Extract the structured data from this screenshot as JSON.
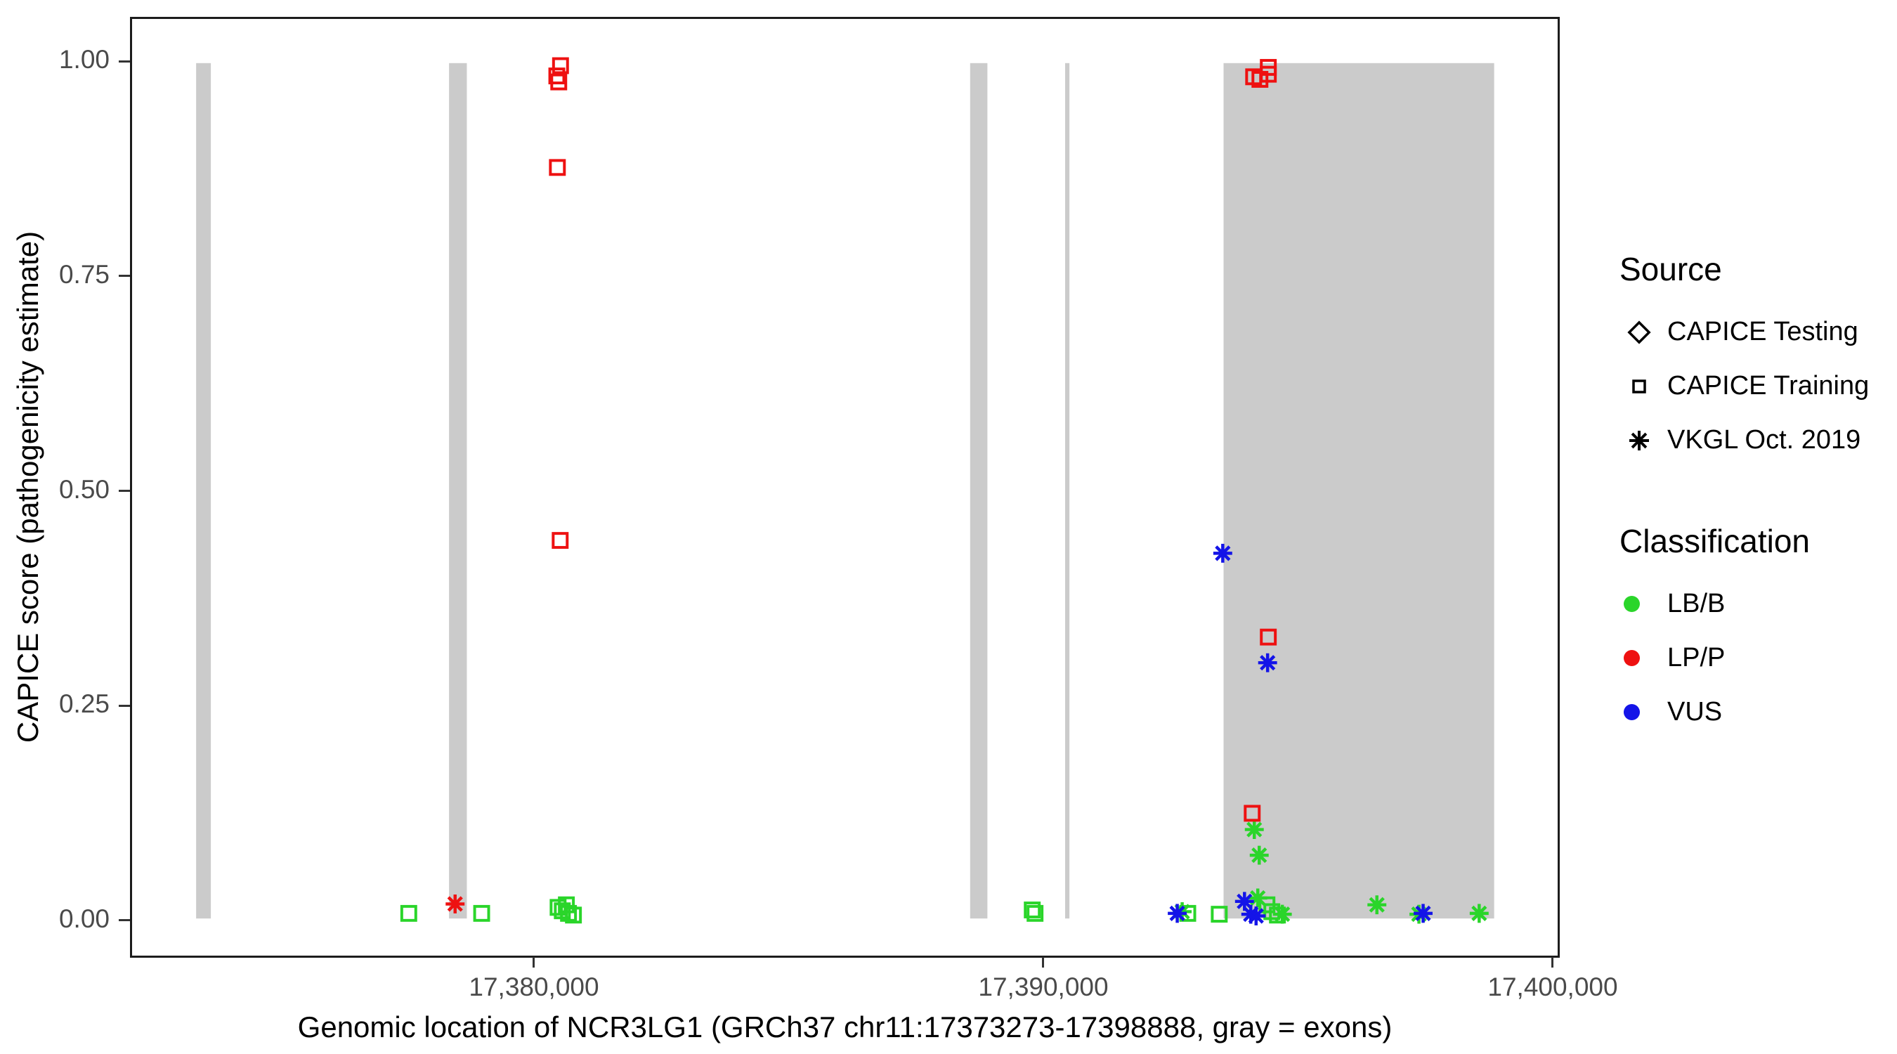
{
  "chart_data": {
    "type": "scatter",
    "title": "",
    "xlabel": "Genomic location of NCR3LG1 (GRCh37 chr11:17373273-17398888, gray = exons)",
    "ylabel": "CAPICE score (pathogenicity estimate)",
    "x_domain": [
      17372069,
      17400138
    ],
    "y_domain": [
      -0.0434,
      1.0516
    ],
    "x_ticks": [
      {
        "value": 17380000,
        "label": "17,380,000"
      },
      {
        "value": 17390000,
        "label": "17,390,000"
      },
      {
        "value": 17400000,
        "label": "17,400,000"
      }
    ],
    "y_ticks": [
      {
        "value": 0.0,
        "label": "0.00"
      },
      {
        "value": 0.25,
        "label": "0.25"
      },
      {
        "value": 0.5,
        "label": "0.50"
      },
      {
        "value": 0.75,
        "label": "0.75"
      },
      {
        "value": 1.0,
        "label": "1.00"
      }
    ],
    "grid": false,
    "exon_note": "gray vertical rectangles mark exons, spanning score 0 to 1",
    "exons": [
      [
        17373330,
        17373620
      ],
      [
        17378310,
        17378660
      ],
      [
        17388570,
        17388910
      ],
      [
        17390440,
        17390525
      ],
      [
        17393560,
        17398888
      ]
    ],
    "colors": {
      "LB/B": "#2AD52A",
      "LP/P": "#EE1111",
      "VUS": "#1414E8",
      "exon": "#CBCBCB"
    },
    "shape_by_source": {
      "CAPICE Testing": "diamond",
      "CAPICE Training": "square",
      "VKGL Oct. 2019": "asterisk"
    },
    "points": [
      {
        "x": 17377517,
        "y": 0.006,
        "source": "CAPICE Training",
        "class": "LB/B"
      },
      {
        "x": 17378952,
        "y": 0.006,
        "source": "CAPICE Training",
        "class": "LB/B"
      },
      {
        "x": 17380457,
        "y": 0.013,
        "source": "CAPICE Training",
        "class": "LB/B"
      },
      {
        "x": 17380540,
        "y": 0.009,
        "source": "CAPICE Training",
        "class": "LB/B"
      },
      {
        "x": 17380620,
        "y": 0.016,
        "source": "CAPICE Training",
        "class": "LB/B"
      },
      {
        "x": 17380662,
        "y": 0.006,
        "source": "CAPICE Training",
        "class": "LB/B"
      },
      {
        "x": 17380759,
        "y": 0.004,
        "source": "CAPICE Training",
        "class": "LB/B"
      },
      {
        "x": 17389793,
        "y": 0.01,
        "source": "CAPICE Training",
        "class": "LB/B"
      },
      {
        "x": 17389848,
        "y": 0.006,
        "source": "CAPICE Training",
        "class": "LB/B"
      },
      {
        "x": 17392855,
        "y": 0.006,
        "source": "CAPICE Training",
        "class": "LB/B"
      },
      {
        "x": 17393475,
        "y": 0.005,
        "source": "CAPICE Training",
        "class": "LB/B"
      },
      {
        "x": 17394414,
        "y": 0.016,
        "source": "CAPICE Training",
        "class": "LB/B"
      },
      {
        "x": 17394510,
        "y": 0.008,
        "source": "CAPICE Training",
        "class": "LB/B"
      },
      {
        "x": 17394621,
        "y": 0.004,
        "source": "CAPICE Training",
        "class": "LB/B"
      },
      {
        "x": 17392745,
        "y": 0.008,
        "source": "VKGL Oct. 2019",
        "class": "LB/B"
      },
      {
        "x": 17394234,
        "y": 0.024,
        "source": "VKGL Oct. 2019",
        "class": "LB/B"
      },
      {
        "x": 17394717,
        "y": 0.005,
        "source": "VKGL Oct. 2019",
        "class": "LB/B"
      },
      {
        "x": 17394165,
        "y": 0.104,
        "source": "VKGL Oct. 2019",
        "class": "LB/B"
      },
      {
        "x": 17394262,
        "y": 0.074,
        "source": "VKGL Oct. 2019",
        "class": "LB/B"
      },
      {
        "x": 17396579,
        "y": 0.016,
        "source": "VKGL Oct. 2019",
        "class": "LB/B"
      },
      {
        "x": 17397407,
        "y": 0.005,
        "source": "VKGL Oct. 2019",
        "class": "LB/B"
      },
      {
        "x": 17398593,
        "y": 0.006,
        "source": "VKGL Oct. 2019",
        "class": "LB/B"
      },
      {
        "x": 17393972,
        "y": 0.02,
        "source": "VKGL Oct. 2019",
        "class": "VUS"
      },
      {
        "x": 17394096,
        "y": 0.005,
        "source": "VKGL Oct. 2019",
        "class": "VUS"
      },
      {
        "x": 17394200,
        "y": 0.003,
        "source": "VKGL Oct. 2019",
        "class": "VUS"
      },
      {
        "x": 17392648,
        "y": 0.006,
        "source": "VKGL Oct. 2019",
        "class": "VUS"
      },
      {
        "x": 17397489,
        "y": 0.006,
        "source": "VKGL Oct. 2019",
        "class": "VUS"
      },
      {
        "x": 17393544,
        "y": 0.427,
        "source": "VKGL Oct. 2019",
        "class": "VUS"
      },
      {
        "x": 17394427,
        "y": 0.299,
        "source": "VKGL Oct. 2019",
        "class": "VUS"
      },
      {
        "x": 17378429,
        "y": 0.017,
        "source": "VKGL Oct. 2019",
        "class": "LP/P"
      },
      {
        "x": 17380505,
        "y": 0.997,
        "source": "CAPICE Training",
        "class": "LP/P"
      },
      {
        "x": 17380432,
        "y": 0.985,
        "source": "CAPICE Training",
        "class": "LP/P"
      },
      {
        "x": 17380470,
        "y": 0.978,
        "source": "CAPICE Training",
        "class": "LP/P"
      },
      {
        "x": 17380443,
        "y": 0.878,
        "source": "CAPICE Training",
        "class": "LP/P"
      },
      {
        "x": 17380498,
        "y": 0.442,
        "source": "CAPICE Training",
        "class": "LP/P"
      },
      {
        "x": 17394441,
        "y": 0.995,
        "source": "CAPICE Training",
        "class": "LP/P"
      },
      {
        "x": 17394441,
        "y": 0.987,
        "source": "CAPICE Training",
        "class": "LP/P"
      },
      {
        "x": 17394152,
        "y": 0.984,
        "source": "CAPICE Training",
        "class": "LP/P"
      },
      {
        "x": 17394276,
        "y": 0.981,
        "source": "CAPICE Training",
        "class": "LP/P"
      },
      {
        "x": 17394441,
        "y": 0.329,
        "source": "CAPICE Training",
        "class": "LP/P"
      },
      {
        "x": 17394124,
        "y": 0.123,
        "source": "CAPICE Training",
        "class": "LP/P"
      }
    ]
  },
  "legend": {
    "source": {
      "title": "Source",
      "items": [
        {
          "shape": "diamond",
          "label": "CAPICE Testing"
        },
        {
          "shape": "square",
          "label": "CAPICE Training"
        },
        {
          "shape": "asterisk",
          "label": "VKGL Oct. 2019"
        }
      ]
    },
    "classification": {
      "title": "Classification",
      "items": [
        {
          "label": "LB/B",
          "color": "#2AD52A"
        },
        {
          "label": "LP/P",
          "color": "#EE1111"
        },
        {
          "label": "VUS",
          "color": "#1414E8"
        }
      ]
    }
  }
}
